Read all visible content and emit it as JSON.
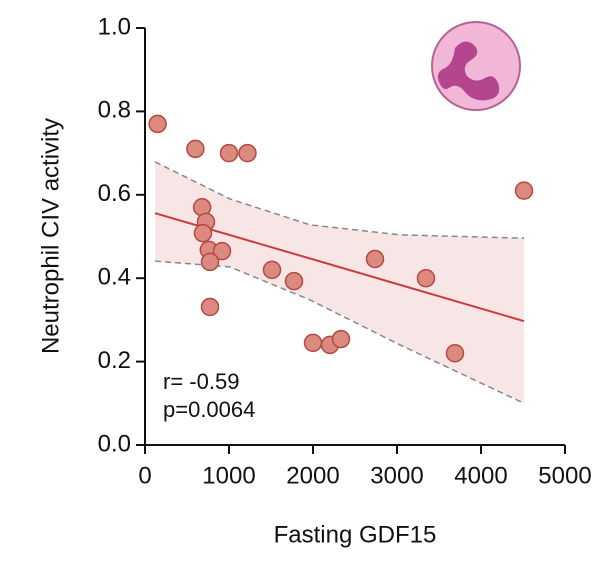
{
  "chart_data": {
    "type": "scatter",
    "x_label": "Fasting GDF15",
    "y_label": "Neutrophil CIV activity",
    "annotations": [
      "r= -0.59",
      "p=0.0064"
    ],
    "x": [
      150,
      600,
      1000,
      1220,
      680,
      726,
      690,
      760,
      917,
      774,
      774,
      1512,
      1774,
      2000,
      2202,
      2333,
      2738,
      3345,
      3690,
      4512
    ],
    "values": [
      0.77,
      0.71,
      0.7,
      0.7,
      0.57,
      0.535,
      0.508,
      0.468,
      0.465,
      0.439,
      0.331,
      0.42,
      0.393,
      0.245,
      0.24,
      0.254,
      0.446,
      0.4,
      0.22,
      0.61
    ],
    "color": "#dc8a80",
    "fit": {
      "x": [
        120,
        4512
      ],
      "y": [
        0.556,
        0.297
      ],
      "color": "#c83c3c"
    },
    "ci_band": {
      "x": [
        120,
        1012,
        1964,
        3036,
        4512
      ],
      "upper": [
        0.679,
        0.59,
        0.528,
        0.504,
        0.496
      ],
      "lower": [
        0.441,
        0.427,
        0.348,
        0.24,
        0.1
      ],
      "color": "#f6dede"
    },
    "xlim": [
      0,
      5000
    ],
    "ylim": [
      0,
      1
    ],
    "xticks": [
      0,
      1000,
      2000,
      3000,
      4000,
      5000
    ],
    "yticks": [
      {
        "value": 0,
        "label": "0.0"
      },
      0.2,
      0.4,
      0.6,
      0.8,
      {
        "value": 1,
        "label": "1.0"
      }
    ]
  }
}
